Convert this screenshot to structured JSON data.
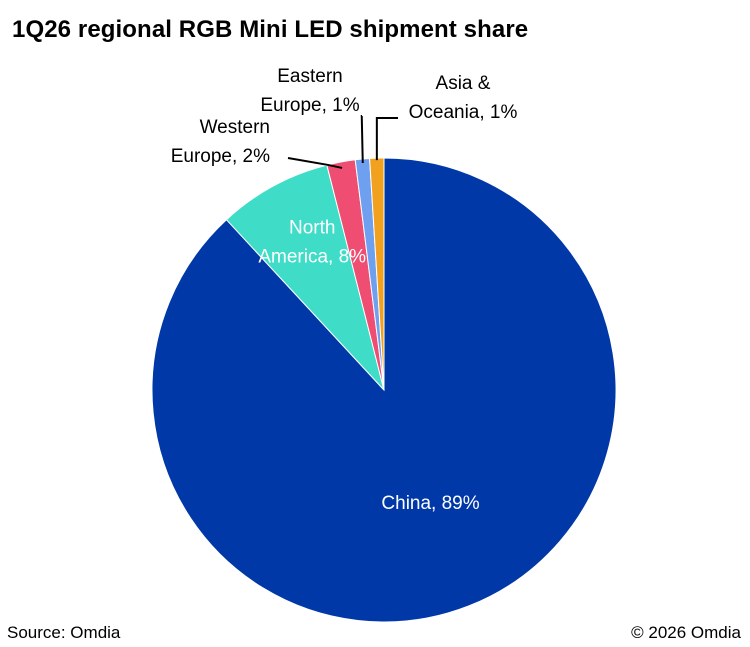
{
  "title": "1Q26 regional RGB Mini LED shipment share",
  "footer": {
    "source": "Source: Omdia",
    "copyright": "© 2026 Omdia"
  },
  "chart_data": {
    "type": "pie",
    "title": "1Q26 regional RGB Mini LED shipment share",
    "slices": [
      {
        "name": "China",
        "value": 89,
        "label": "China, 89%",
        "color": "#0038a8"
      },
      {
        "name": "North America",
        "value": 8,
        "label": "North America, 8%",
        "color": "#3fdcc8"
      },
      {
        "name": "Western Europe",
        "value": 2,
        "label": "Western Europe, 2%",
        "color": "#ef4d72"
      },
      {
        "name": "Eastern Europe",
        "value": 1,
        "label": "Eastern Europe, 1%",
        "color": "#6fa0f0"
      },
      {
        "name": "Asia & Oceania",
        "value": 1,
        "label": "Asia & Oceania, 1%",
        "color": "#f2a11f"
      }
    ],
    "label_placement": {
      "China": "inside",
      "North America": "inside",
      "Western Europe": "outside-left",
      "Eastern Europe": "outside-top",
      "Asia & Oceania": "outside-top-right"
    }
  }
}
